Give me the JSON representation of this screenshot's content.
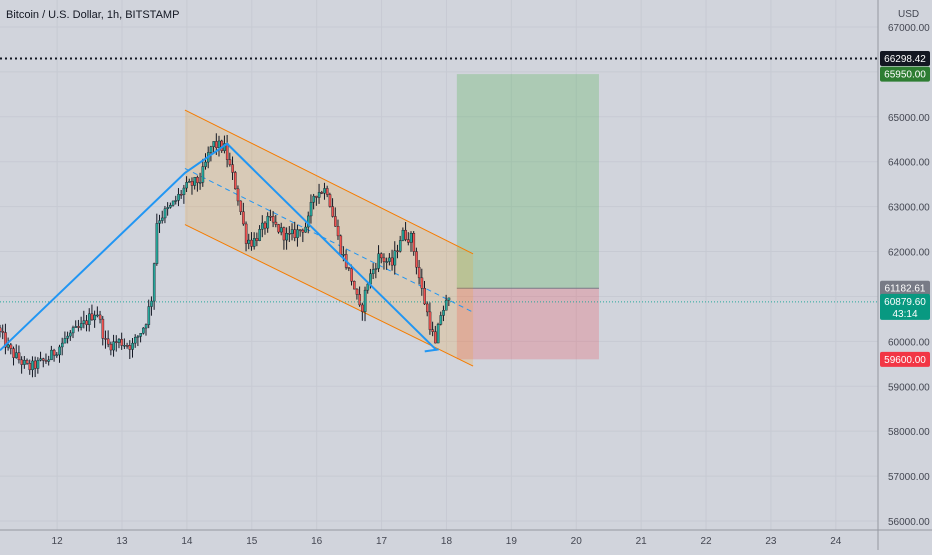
{
  "chart_data": {
    "type": "candlestick",
    "title": "Bitcoin / U.S. Dollar, 1h, BITSTAMP",
    "currency": "USD",
    "ylim": [
      55800,
      67600
    ],
    "xlim": [
      11.12,
      24.65
    ],
    "y_ticks": [
      "56000.00",
      "57000.00",
      "58000.00",
      "59000.00",
      "60000.00",
      "61000.00",
      "62000.00",
      "63000.00",
      "64000.00",
      "65000.00",
      "66000.00",
      "67000.00"
    ],
    "x_ticks": [
      {
        "value": 12,
        "label": "12"
      },
      {
        "value": 13,
        "label": "13"
      },
      {
        "value": 14,
        "label": "14"
      },
      {
        "value": 15,
        "label": "15"
      },
      {
        "value": 16,
        "label": "16"
      },
      {
        "value": 17,
        "label": "17"
      },
      {
        "value": 18,
        "label": "18"
      },
      {
        "value": 19,
        "label": "19"
      },
      {
        "value": 20,
        "label": "20"
      },
      {
        "value": 21,
        "label": "21"
      },
      {
        "value": 22,
        "label": "22"
      },
      {
        "value": 23,
        "label": "23"
      },
      {
        "value": 24,
        "label": "24"
      }
    ],
    "price_labels": [
      {
        "value": 66298.42,
        "label": "66298.42",
        "color": "#131722",
        "text_color": "#ffffff"
      },
      {
        "value": 65950.0,
        "label": "65950.00",
        "color": "#2e7d32",
        "text_color": "#ffffff"
      },
      {
        "value": 61182.61,
        "label": "61182.61",
        "color": "#787b86",
        "text_color": "#ffffff"
      },
      {
        "value": 60879.6,
        "label": "60879.60",
        "sublabel": "43:14",
        "color": "#089981",
        "text_color": "#ffffff"
      },
      {
        "value": 59600.0,
        "label": "59600.00",
        "color": "#f23645",
        "text_color": "#ffffff"
      }
    ],
    "current_price": 60879.6,
    "high_line": 66298.42,
    "position": {
      "x_start": 18.16,
      "x_end": 20.35,
      "entry": 61182.61,
      "target": 65950.0,
      "stop": 59600.0
    },
    "channel": {
      "upper": [
        [
          13.97,
          65150
        ],
        [
          18.41,
          61950
        ]
      ],
      "lower": [
        [
          13.97,
          62600
        ],
        [
          18.41,
          59450
        ]
      ],
      "mid": [
        [
          13.97,
          63850
        ],
        [
          18.41,
          60650
        ]
      ]
    },
    "zigzag": [
      [
        11.12,
        59800
      ],
      [
        13.97,
        63750
      ],
      [
        14.62,
        64400
      ],
      [
        17.85,
        59800
      ]
    ],
    "anchors": [
      {
        "t": 11.12,
        "p": 60300
      },
      {
        "t": 11.3,
        "p": 59800
      },
      {
        "t": 11.6,
        "p": 59400
      },
      {
        "t": 11.9,
        "p": 59600
      },
      {
        "t": 12.2,
        "p": 60100
      },
      {
        "t": 12.4,
        "p": 60300
      },
      {
        "t": 12.65,
        "p": 60700
      },
      {
        "t": 12.8,
        "p": 59900
      },
      {
        "t": 13.0,
        "p": 60000
      },
      {
        "t": 13.2,
        "p": 59900
      },
      {
        "t": 13.4,
        "p": 60400
      },
      {
        "t": 13.5,
        "p": 61000
      },
      {
        "t": 13.58,
        "p": 62700
      },
      {
        "t": 13.8,
        "p": 63000
      },
      {
        "t": 14.0,
        "p": 63400
      },
      {
        "t": 14.25,
        "p": 63600
      },
      {
        "t": 14.43,
        "p": 64400
      },
      {
        "t": 14.62,
        "p": 64300
      },
      {
        "t": 14.8,
        "p": 63400
      },
      {
        "t": 14.95,
        "p": 62300
      },
      {
        "t": 15.05,
        "p": 62200
      },
      {
        "t": 15.3,
        "p": 62700
      },
      {
        "t": 15.6,
        "p": 62300
      },
      {
        "t": 15.9,
        "p": 62600
      },
      {
        "t": 16.0,
        "p": 63300
      },
      {
        "t": 16.2,
        "p": 63400
      },
      {
        "t": 16.4,
        "p": 62100
      },
      {
        "t": 16.6,
        "p": 61300
      },
      {
        "t": 16.72,
        "p": 60600
      },
      {
        "t": 16.82,
        "p": 61300
      },
      {
        "t": 17.0,
        "p": 61900
      },
      {
        "t": 17.2,
        "p": 61700
      },
      {
        "t": 17.35,
        "p": 62400
      },
      {
        "t": 17.5,
        "p": 62300
      },
      {
        "t": 17.65,
        "p": 61200
      },
      {
        "t": 17.8,
        "p": 60300
      },
      {
        "t": 17.87,
        "p": 59900
      },
      {
        "t": 17.95,
        "p": 60600
      },
      {
        "t": 18.05,
        "p": 60880
      }
    ]
  }
}
